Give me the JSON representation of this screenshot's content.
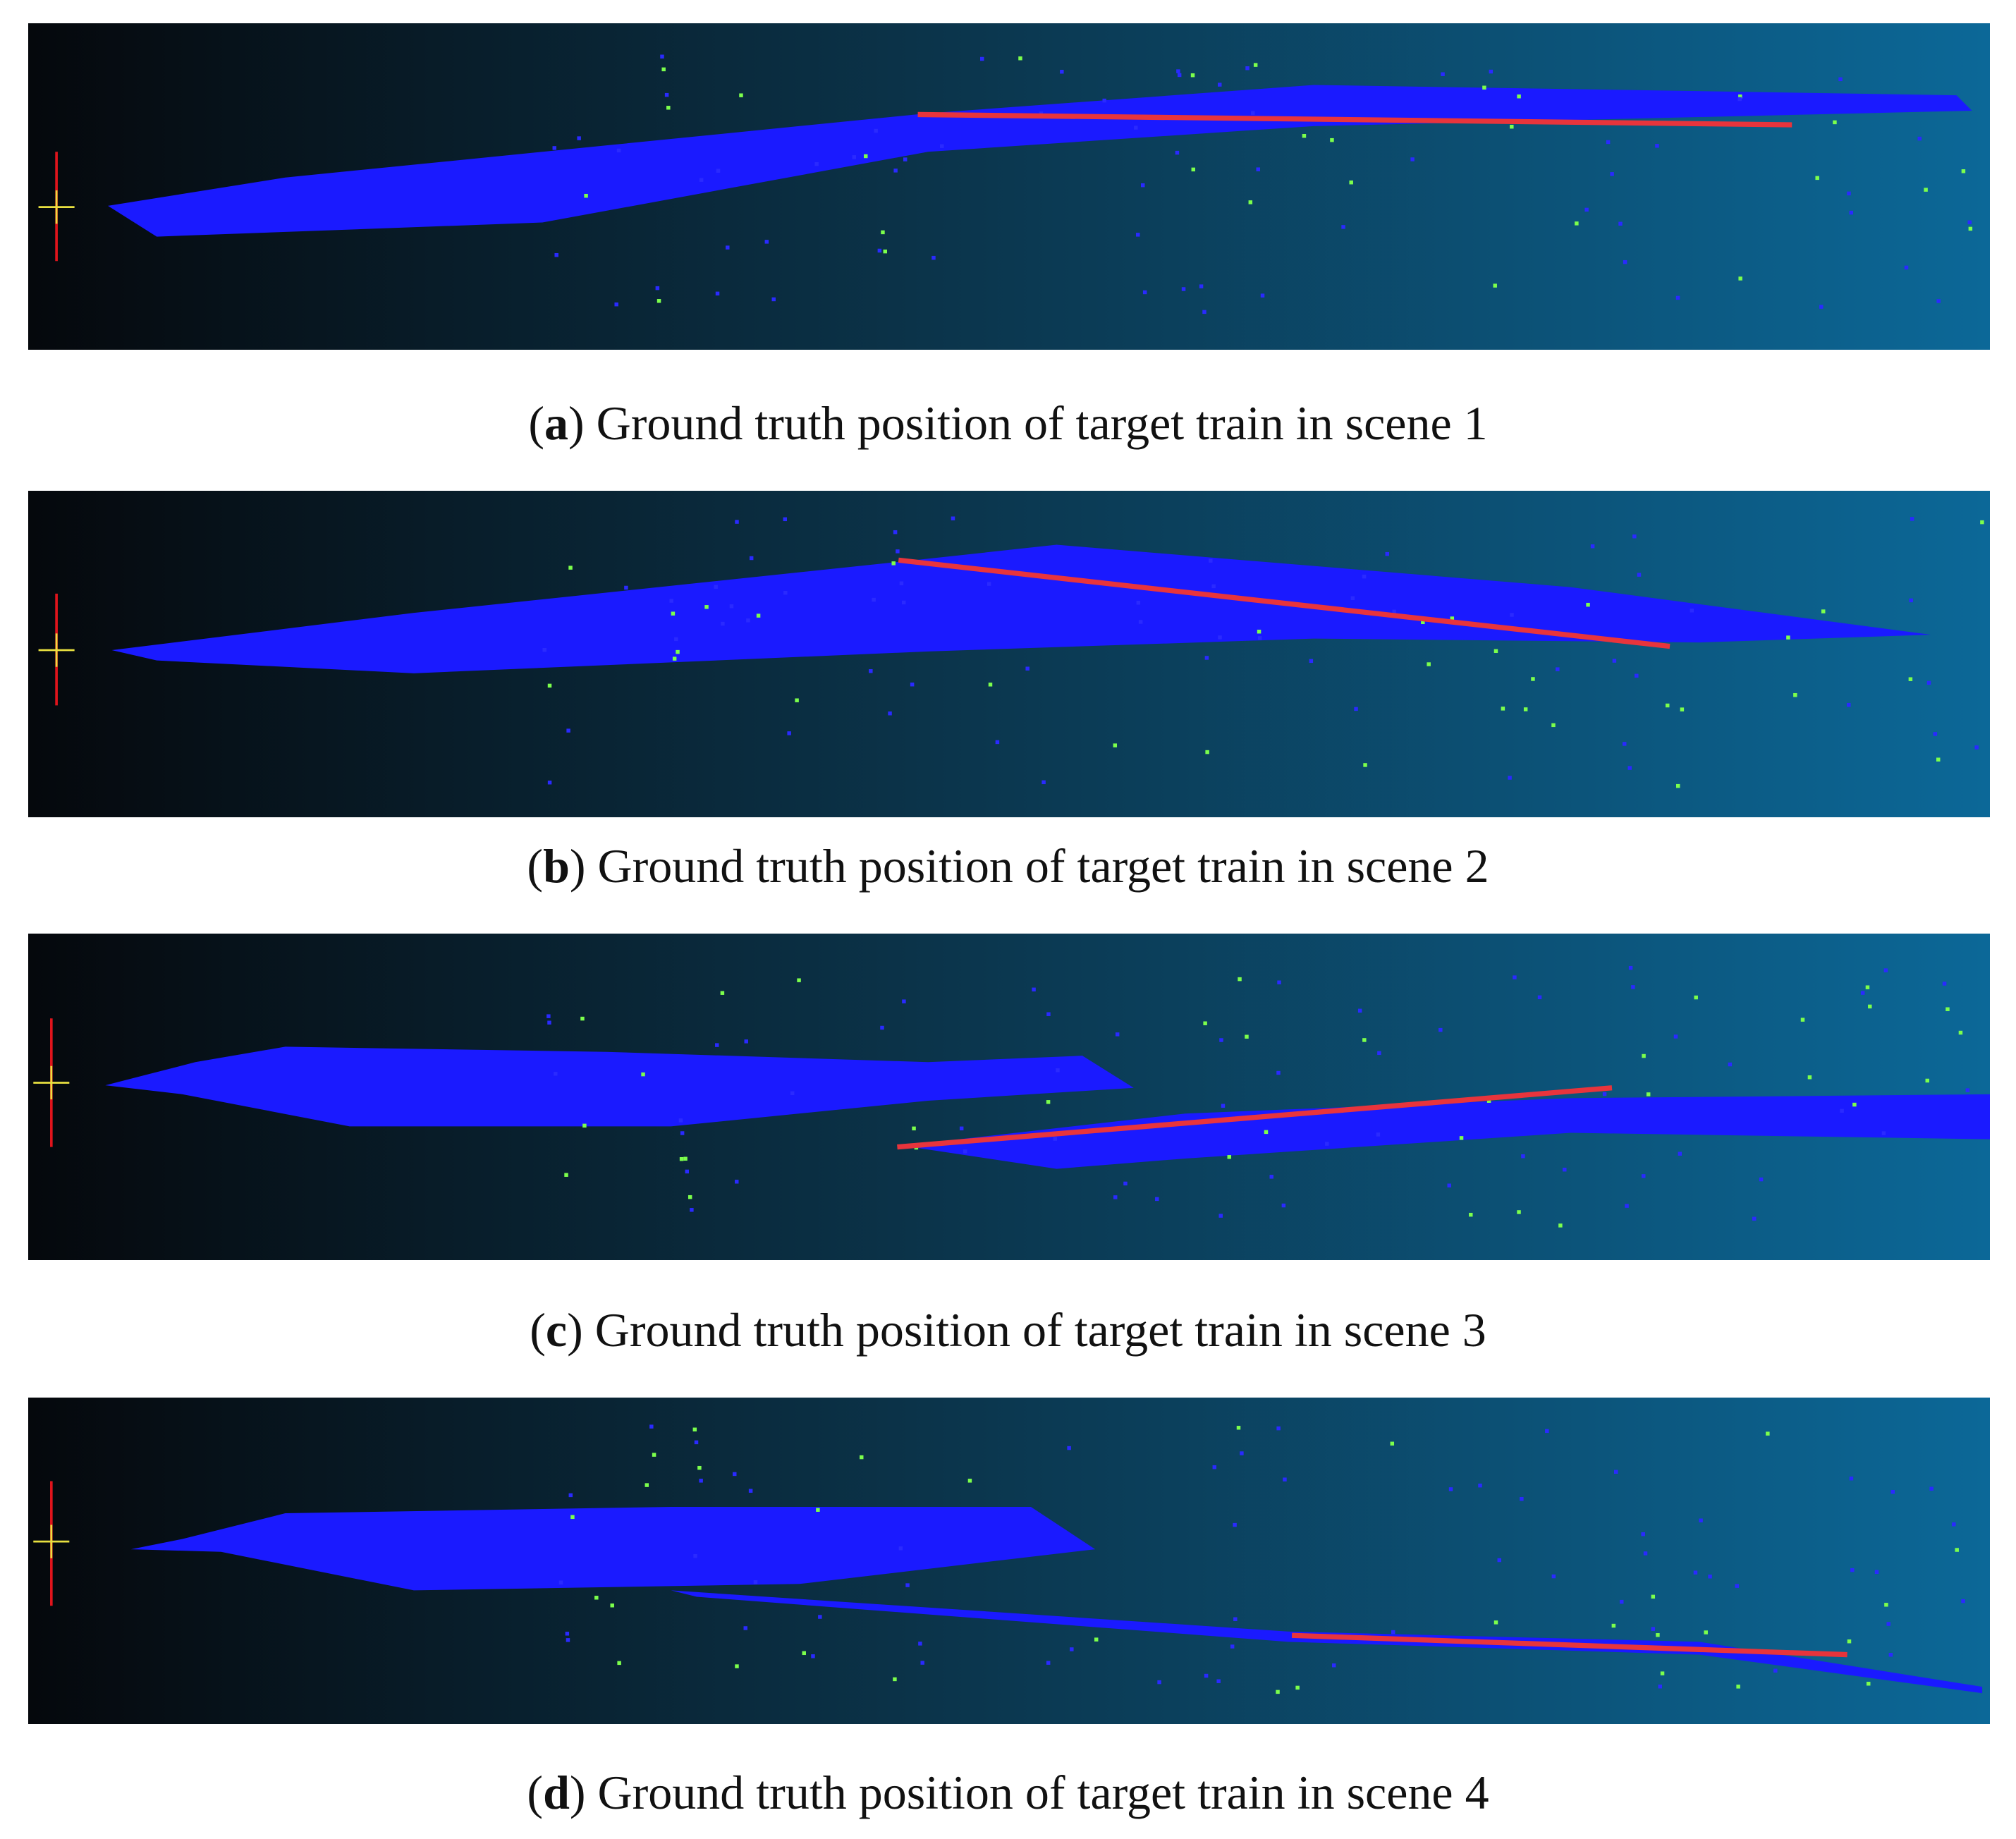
{
  "panels": [
    {
      "caption": [
        "(",
        "a",
        ") Ground truth position of target train in scene 1"
      ]
    },
    {
      "caption": [
        "(",
        "b",
        ") Ground truth position of target train in scene 2"
      ]
    },
    {
      "caption": [
        "(",
        "c",
        ") Ground truth position of target train in scene 3"
      ]
    },
    {
      "caption": [
        "(",
        "d",
        ") Ground truth position of target train in scene 4"
      ]
    }
  ]
}
